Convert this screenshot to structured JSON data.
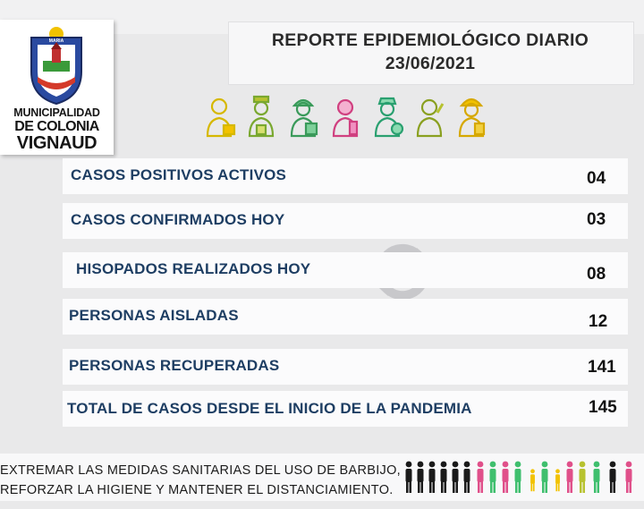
{
  "logo": {
    "line1": "MUNICIPALIDAD",
    "line2": "DE COLONIA",
    "line3": "VIGNAUD",
    "crest_text": "MARIA"
  },
  "header": {
    "title": "REPORTE EPIDEMIOLÓGICO DIARIO",
    "date": "23/06/2021"
  },
  "worker_icons": [
    "businessman-icon",
    "nurse-icon",
    "doctor-icon",
    "teacher-icon",
    "health-worker-icon",
    "farmer-icon",
    "firefighter-icon"
  ],
  "stats": [
    {
      "label": "CASOS POSITIVOS ACTIVOS",
      "value": "04"
    },
    {
      "label": "CASOS CONFIRMADOS HOY",
      "value": "03"
    },
    {
      "label": "HISOPADOS REALIZADOS HOY",
      "value": "08"
    },
    {
      "label": "PERSONAS AISLADAS",
      "value": "12"
    },
    {
      "label": "PERSONAS RECUPERADAS",
      "value": "141"
    },
    {
      "label": "TOTAL DE CASOS DESDE EL INICIO DE LA PANDEMIA",
      "value": "145"
    }
  ],
  "footer": {
    "line1": "EXTREMAR LAS MEDIDAS SANITARIAS DEL USO DE BARBIJO,",
    "line2": "REFORZAR LA HIGIENE Y MANTENER EL DISTANCIAMIENTO."
  },
  "colors": {
    "label_blue": "#1e3e63",
    "accent_yellow": "#f2c200",
    "accent_green": "#3fbf6e",
    "accent_pink": "#e0508a",
    "accent_olive": "#b7c230"
  }
}
